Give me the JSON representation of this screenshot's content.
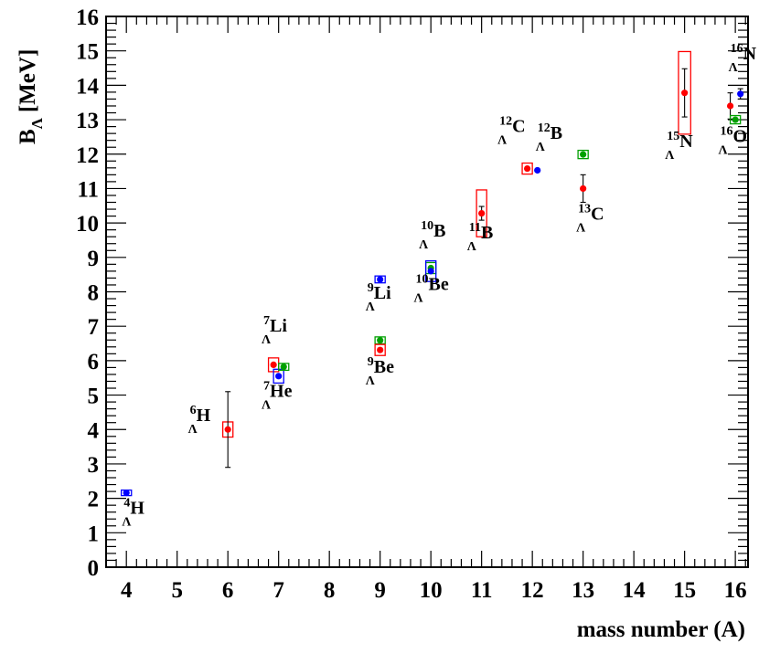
{
  "chart_data": {
    "type": "scatter",
    "title": "",
    "xlabel": "mass number (A)",
    "ylabel": {
      "base": "B",
      "sub": "Λ",
      "unit": "[MeV]"
    },
    "xlim": [
      3.6,
      16.25
    ],
    "ylim": [
      0,
      16
    ],
    "x_ticks": [
      4,
      5,
      6,
      7,
      8,
      9,
      10,
      11,
      12,
      13,
      14,
      15,
      16
    ],
    "y_ticks": [
      0,
      1,
      2,
      3,
      4,
      5,
      6,
      7,
      8,
      9,
      10,
      11,
      12,
      13,
      14,
      15,
      16
    ],
    "grid": false,
    "colors": {
      "red": "#ff0000",
      "blue": "#0000ff",
      "green": "#00a000",
      "black": "#000000"
    },
    "points": [
      {
        "x": 4.0,
        "y": 2.16,
        "color": "blue",
        "box": [
          0.1,
          0.08
        ]
      },
      {
        "x": 6.0,
        "y": 4.0,
        "color": "red",
        "err": 1.1,
        "box": [
          0.1,
          0.22
        ]
      },
      {
        "x": 6.9,
        "y": 5.88,
        "color": "red",
        "box": [
          0.1,
          0.2
        ]
      },
      {
        "x": 7.0,
        "y": 5.55,
        "color": "blue",
        "box": [
          0.1,
          0.2
        ]
      },
      {
        "x": 7.1,
        "y": 5.82,
        "color": "green",
        "box": [
          0.1,
          0.1
        ]
      },
      {
        "x": 9.0,
        "y": 8.36,
        "color": "blue",
        "box": [
          0.1,
          0.1
        ]
      },
      {
        "x": 9.0,
        "y": 6.59,
        "color": "green",
        "box": [
          0.1,
          0.1
        ]
      },
      {
        "x": 9.0,
        "y": 6.31,
        "color": "red",
        "box": [
          0.1,
          0.16
        ]
      },
      {
        "x": 10.0,
        "y": 8.69,
        "color": "green",
        "box": [
          0.1,
          0.16
        ]
      },
      {
        "x": 10.0,
        "y": 8.6,
        "color": "blue",
        "box": [
          0.1,
          0.3
        ]
      },
      {
        "x": 11.0,
        "y": 10.28,
        "color": "red",
        "err": 0.2,
        "box": [
          0.1,
          0.68
        ]
      },
      {
        "x": 11.9,
        "y": 11.58,
        "color": "red",
        "box": [
          0.1,
          0.16
        ]
      },
      {
        "x": 12.1,
        "y": 11.53,
        "color": "blue",
        "err_x": 0.06
      },
      {
        "x": 13.0,
        "y": 11.99,
        "color": "green",
        "box": [
          0.1,
          0.12
        ]
      },
      {
        "x": 13.0,
        "y": 11.0,
        "color": "black",
        "err": 0.4,
        "marker_color": "red"
      },
      {
        "x": 15.0,
        "y": 13.78,
        "color": "red",
        "err": 0.7,
        "box": [
          0.12,
          1.2
        ]
      },
      {
        "x": 15.9,
        "y": 13.4,
        "color": "red",
        "err": 0.38
      },
      {
        "x": 16.0,
        "y": 13.0,
        "color": "green",
        "box": [
          0.1,
          0.12
        ]
      },
      {
        "x": 16.1,
        "y": 13.75,
        "color": "blue",
        "err": 0.15
      }
    ],
    "annotations": [
      {
        "mass": "4",
        "sub": "Λ",
        "symbol": "H",
        "x": 3.95,
        "y": 1.55
      },
      {
        "mass": "6",
        "sub": "Λ",
        "symbol": "H",
        "x": 5.25,
        "y": 4.25
      },
      {
        "mass": "7",
        "sub": "Λ",
        "symbol": "Li",
        "x": 6.7,
        "y": 6.85
      },
      {
        "mass": "7",
        "sub": "Λ",
        "symbol": "He",
        "x": 6.7,
        "y": 4.95
      },
      {
        "mass": "9",
        "sub": "Λ",
        "symbol": "Li",
        "x": 8.75,
        "y": 7.8
      },
      {
        "mass": "9",
        "sub": "Λ",
        "symbol": "Be",
        "x": 8.75,
        "y": 5.65
      },
      {
        "mass": "10",
        "sub": "Λ",
        "symbol": "B",
        "x": 9.8,
        "y": 9.6
      },
      {
        "mass": "10",
        "sub": "Λ",
        "symbol": "Be",
        "x": 9.7,
        "y": 8.05
      },
      {
        "mass": "11",
        "sub": "Λ",
        "symbol": "B",
        "x": 10.75,
        "y": 9.55
      },
      {
        "mass": "12",
        "sub": "Λ",
        "symbol": "C",
        "x": 11.35,
        "y": 12.65
      },
      {
        "mass": "12",
        "sub": "Λ",
        "symbol": "B",
        "x": 12.1,
        "y": 12.45
      },
      {
        "mass": "13",
        "sub": "Λ",
        "symbol": "C",
        "x": 12.9,
        "y": 10.1
      },
      {
        "mass": "15",
        "sub": "Λ",
        "symbol": "N",
        "x": 14.65,
        "y": 12.2
      },
      {
        "mass": "16",
        "sub": "Λ",
        "symbol": "N",
        "x": 15.9,
        "y": 14.75
      },
      {
        "mass": "16",
        "sub": "Λ",
        "symbol": "O",
        "x": 15.7,
        "y": 12.35
      }
    ]
  }
}
